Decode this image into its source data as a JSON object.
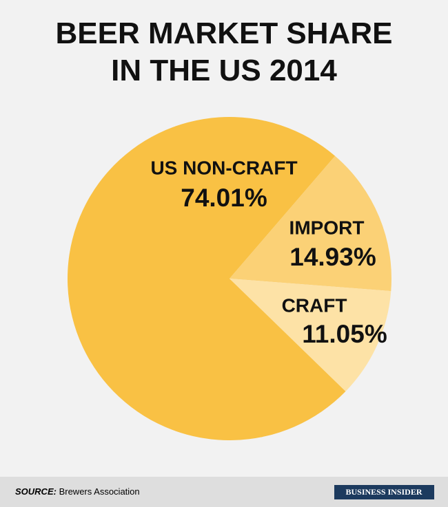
{
  "chart_data": {
    "type": "pie",
    "title": "BEER MARKET SHARE\nIN THE US 2014",
    "categories": [
      "US NON-CRAFT",
      "IMPORT",
      "CRAFT"
    ],
    "values": [
      74.01,
      14.93,
      11.05
    ],
    "value_labels": [
      "74.01%",
      "14.93%",
      "11.05%"
    ],
    "colors": [
      "#f9c144",
      "#fbd176",
      "#fde2a6"
    ]
  },
  "footer": {
    "source_label": "SOURCE:",
    "source": "Brewers Association",
    "brand": "BUSINESS INSIDER"
  }
}
